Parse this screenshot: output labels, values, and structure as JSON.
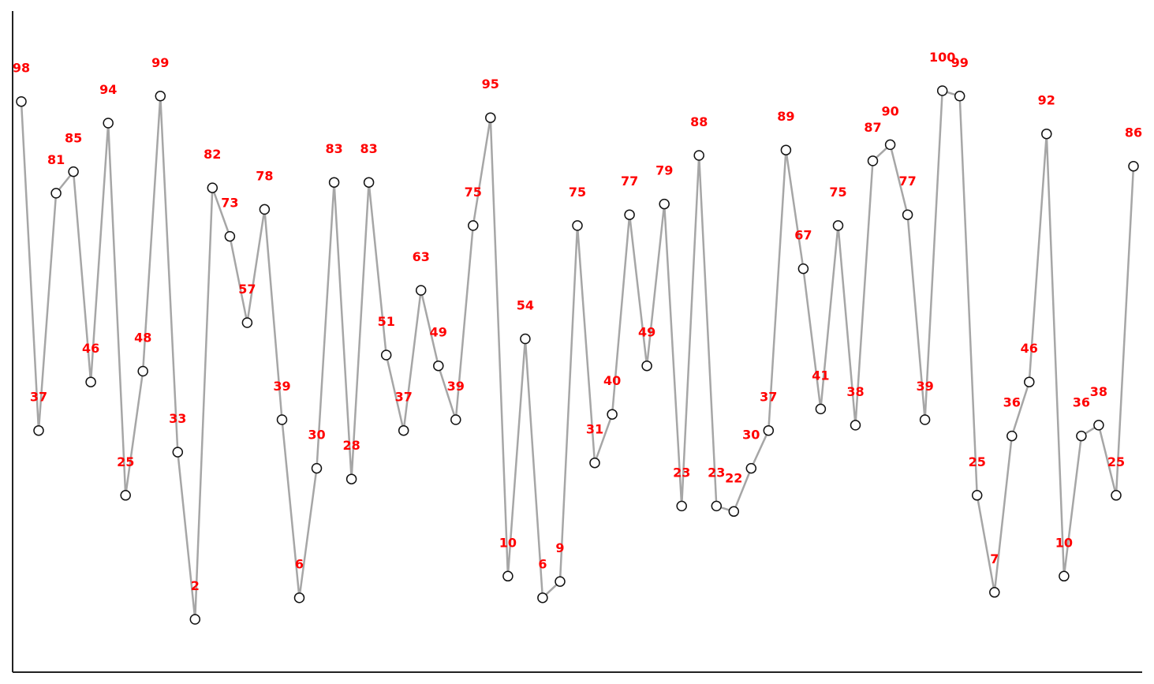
{
  "chart_data": {
    "type": "line",
    "title": "",
    "xlabel": "",
    "ylabel": "",
    "x_ticks": "none",
    "y_ticks": "none",
    "grid": false,
    "legend": "none",
    "ylim": [
      -8,
      114
    ],
    "colors": {
      "line": "#a6a6a6",
      "marker_fill": "#ffffff",
      "marker_edge": "#111111",
      "label": "#ff0000",
      "axis": "#222222"
    },
    "series": [
      {
        "values": [
          98,
          37,
          81,
          85,
          46,
          94,
          25,
          48,
          99,
          33,
          2,
          82,
          73,
          57,
          78,
          39,
          6,
          30,
          83,
          28,
          83,
          51,
          37,
          63,
          49,
          39,
          75,
          95,
          10,
          54,
          6,
          9,
          75,
          31,
          40,
          77,
          49,
          79,
          23,
          88,
          23,
          22,
          30,
          37,
          89,
          67,
          41,
          75,
          38,
          87,
          90,
          77,
          39,
          100,
          99,
          25,
          7,
          36,
          46,
          92,
          10,
          36,
          38,
          25,
          86
        ]
      }
    ]
  }
}
